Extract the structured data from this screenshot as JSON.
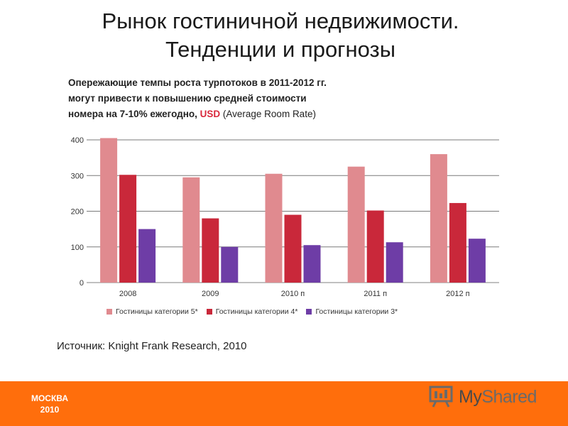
{
  "slide": {
    "title_line1": "Рынок гостиничной недвижимости.",
    "title_line2": "Тенденции и прогнозы"
  },
  "heading": {
    "line1": "Опережающие темпы роста турпотоков в 2011-2012 гг.",
    "line2": "могут привести к повышению средней стоимости",
    "line3_prefix": "номера на 7-10% ежегодно, ",
    "line3_usd": "USD",
    "line3_suffix": " (Average Room Rate)"
  },
  "source": "Источник: Knight Frank Research, 2010",
  "footer": {
    "city": "МОСКВА",
    "year": "2010",
    "logo_my": "My",
    "logo_shared": "Shared",
    "logo_icon": "presentation-board-icon"
  },
  "colors": {
    "series_5star": "#e08a8f",
    "series_4star": "#c9283a",
    "series_3star": "#6e3da6",
    "footer": "#ff6e0c",
    "usd": "#d9283c"
  },
  "chart_data": {
    "type": "bar",
    "categories": [
      "2008",
      "2009",
      "2010 п",
      "2011 п",
      "2012 п"
    ],
    "series": [
      {
        "name": "Гостиницы категории 5*",
        "values": [
          405,
          295,
          305,
          325,
          360
        ]
      },
      {
        "name": "Гостиницы категории 4*",
        "values": [
          302,
          180,
          190,
          202,
          223
        ]
      },
      {
        "name": "Гостиницы категории 3*",
        "values": [
          150,
          100,
          105,
          113,
          123
        ]
      }
    ],
    "yticks": [
      0,
      100,
      200,
      300,
      400
    ],
    "ylim": [
      0,
      400
    ],
    "grid": true,
    "legend_position": "bottom"
  }
}
